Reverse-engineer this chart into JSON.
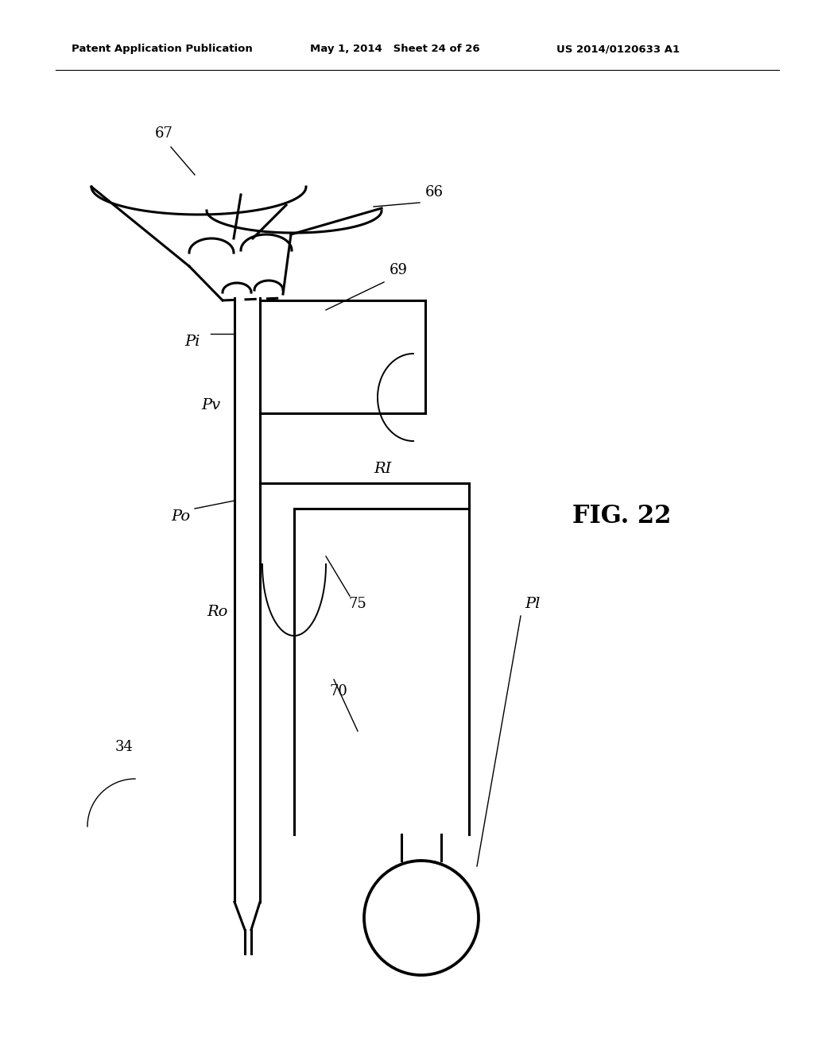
{
  "bg_color": "#ffffff",
  "line_color": "#000000",
  "header_text": "Patent Application Publication",
  "header_date": "May 1, 2014   Sheet 24 of 26",
  "header_patent": "US 2014/0120633 A1"
}
